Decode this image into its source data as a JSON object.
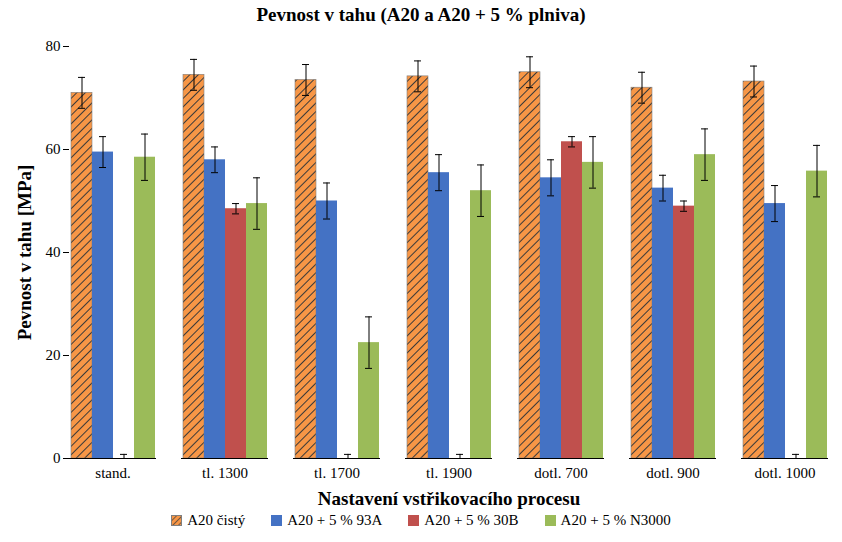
{
  "chart_data": {
    "type": "bar",
    "title": "Pevnost v tahu (A20 a A20 + 5 % plniva)",
    "x_label": "Nastavení vstřikovacího procesu",
    "y_label": "Pevnost v tahu [MPa]",
    "categories": [
      "stand.",
      "tl. 1300",
      "tl. 1700",
      "tl. 1900",
      "dotl. 700",
      "dotl. 900",
      "dotl. 1000"
    ],
    "series": [
      {
        "name": "A20 čistý",
        "color": "#f79646",
        "values": [
          71,
          74.5,
          73.5,
          74.2,
          75,
          72,
          73.2
        ],
        "errors": [
          3,
          3,
          3,
          3,
          3,
          3,
          3
        ]
      },
      {
        "name": "A20 + 5 % 93A",
        "color": "#4472c4",
        "values": [
          59.5,
          58,
          50,
          55.5,
          54.5,
          52.5,
          49.5
        ],
        "errors": [
          3,
          2.5,
          3.5,
          3.5,
          3.5,
          2.5,
          3.5
        ]
      },
      {
        "name": "A20 + 5 % 30B",
        "color": "#c0504d",
        "values": [
          0,
          48.5,
          0,
          0,
          61.5,
          49,
          0
        ],
        "errors": [
          0.8,
          1,
          0.8,
          0.8,
          1,
          1,
          0.8
        ]
      },
      {
        "name": "A20 + 5 % N3000",
        "color": "#9bbb59",
        "values": [
          58.5,
          49.5,
          22.5,
          52,
          57.5,
          59,
          55.8
        ],
        "errors": [
          4.5,
          5,
          5,
          5,
          5,
          5,
          5
        ]
      }
    ],
    "ylim": [
      0,
      80
    ],
    "yticks": [
      0,
      20,
      40,
      60,
      80
    ],
    "grid": false,
    "legend": "bottom"
  }
}
